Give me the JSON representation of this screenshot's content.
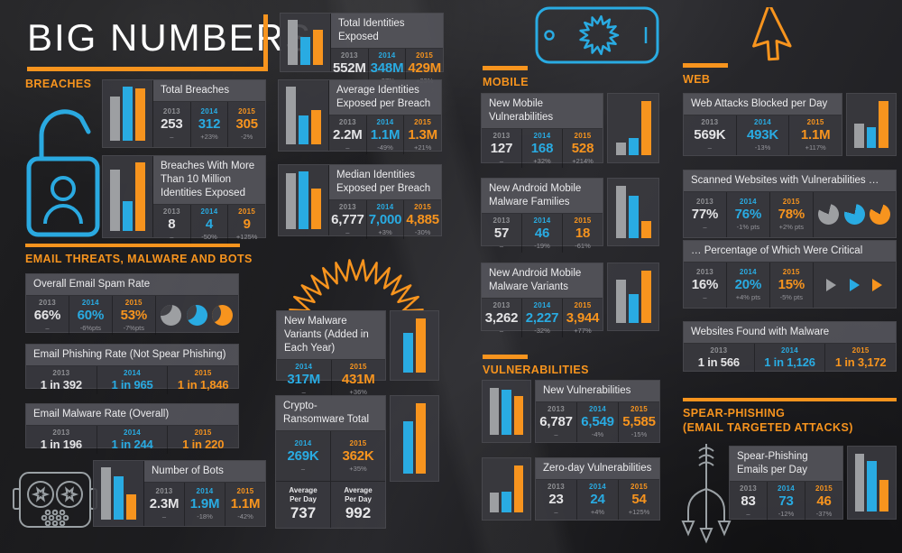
{
  "title": "BIG NUMBERS",
  "colors": {
    "orange": "#F7941E",
    "blue": "#29ABE2",
    "gray": "#9D9FA2"
  },
  "sections": {
    "breaches": {
      "label": "BREACHES"
    },
    "email": {
      "label": "EMAIL THREATS, MALWARE AND BOTS"
    },
    "mobile": {
      "label": "MOBILE"
    },
    "vulnerabilities": {
      "label": "VULNERABILITIES"
    },
    "web": {
      "label": "WEB"
    },
    "spear": {
      "label_line1": "SPEAR-PHISHING",
      "label_line2": "(EMAIL TARGETED ATTACKS)"
    }
  },
  "cards": {
    "total_identities": {
      "title": "Total Identities Exposed",
      "cols": [
        {
          "year": "2013",
          "value": "552M",
          "change": "–"
        },
        {
          "year": "2014",
          "value": "348M",
          "change": "-37%"
        },
        {
          "year": "2015",
          "value": "429M",
          "change": "+23%"
        }
      ],
      "bars": [
        {
          "color": "gray",
          "pct": 100
        },
        {
          "color": "blue",
          "pct": 63
        },
        {
          "color": "orange",
          "pct": 78
        }
      ]
    },
    "total_breaches": {
      "title": "Total Breaches",
      "cols": [
        {
          "year": "2013",
          "value": "253",
          "change": "–"
        },
        {
          "year": "2014",
          "value": "312",
          "change": "+23%"
        },
        {
          "year": "2015",
          "value": "305",
          "change": "-2%"
        }
      ],
      "bars": [
        {
          "color": "gray",
          "pct": 81
        },
        {
          "color": "blue",
          "pct": 100
        },
        {
          "color": "orange",
          "pct": 97
        }
      ]
    },
    "breaches_10m": {
      "title": "Breaches With More Than 10 Million Identities Exposed",
      "cols": [
        {
          "year": "2013",
          "value": "8",
          "change": "–"
        },
        {
          "year": "2014",
          "value": "4",
          "change": "-50%"
        },
        {
          "year": "2015",
          "value": "9",
          "change": "+125%"
        }
      ],
      "bars": [
        {
          "color": "gray",
          "pct": 89
        },
        {
          "color": "blue",
          "pct": 44
        },
        {
          "color": "orange",
          "pct": 100
        }
      ]
    },
    "avg_identities": {
      "title": "Average Identities Exposed per Breach",
      "cols": [
        {
          "year": "2013",
          "value": "2.2M",
          "change": "–"
        },
        {
          "year": "2014",
          "value": "1.1M",
          "change": "-49%"
        },
        {
          "year": "2015",
          "value": "1.3M",
          "change": "+21%"
        }
      ],
      "bars": [
        {
          "color": "gray",
          "pct": 100
        },
        {
          "color": "blue",
          "pct": 50
        },
        {
          "color": "orange",
          "pct": 59
        }
      ]
    },
    "median_identities": {
      "title": "Median Identities Exposed per Breach",
      "cols": [
        {
          "year": "2013",
          "value": "6,777",
          "change": "–"
        },
        {
          "year": "2014",
          "value": "7,000",
          "change": "+3%"
        },
        {
          "year": "2015",
          "value": "4,885",
          "change": "-30%"
        }
      ],
      "bars": [
        {
          "color": "gray",
          "pct": 97
        },
        {
          "color": "blue",
          "pct": 100
        },
        {
          "color": "orange",
          "pct": 70
        }
      ]
    },
    "spam_rate": {
      "title": "Overall Email Spam Rate",
      "cols": [
        {
          "year": "2013",
          "value": "66%",
          "change": "–"
        },
        {
          "year": "2014",
          "value": "60%",
          "change": "-6%pts"
        },
        {
          "year": "2015",
          "value": "53%",
          "change": "-7%pts"
        }
      ]
    },
    "phishing_rate": {
      "title": "Email Phishing Rate (Not Spear Phishing)",
      "cols": [
        {
          "year": "2013",
          "value": "1 in 392"
        },
        {
          "year": "2014",
          "value": "1 in 965"
        },
        {
          "year": "2015",
          "value": "1 in 1,846"
        }
      ]
    },
    "malware_rate": {
      "title": "Email Malware Rate (Overall)",
      "cols": [
        {
          "year": "2013",
          "value": "1 in 196"
        },
        {
          "year": "2014",
          "value": "1 in 244"
        },
        {
          "year": "2015",
          "value": "1 in 220"
        }
      ]
    },
    "bots": {
      "title": "Number of Bots",
      "cols": [
        {
          "year": "2013",
          "value": "2.3M",
          "change": "–"
        },
        {
          "year": "2014",
          "value": "1.9M",
          "change": "-18%"
        },
        {
          "year": "2015",
          "value": "1.1M",
          "change": "-42%"
        }
      ],
      "bars": [
        {
          "color": "gray",
          "pct": 100
        },
        {
          "color": "blue",
          "pct": 83
        },
        {
          "color": "orange",
          "pct": 48
        }
      ]
    },
    "new_malware": {
      "title": "New Malware Variants (Added in Each Year)",
      "cols": [
        {
          "year": "2014",
          "value": "317M",
          "change": "–"
        },
        {
          "year": "2015",
          "value": "431M",
          "change": "+36%"
        }
      ],
      "bars": [
        {
          "color": "blue",
          "pct": 74
        },
        {
          "color": "orange",
          "pct": 100
        }
      ]
    },
    "crypto": {
      "title": "Crypto-Ransomware Total",
      "cols": [
        {
          "year": "2014",
          "value": "269K",
          "change": "–"
        },
        {
          "year": "2015",
          "value": "362K",
          "change": "+35%"
        }
      ],
      "bars": [
        {
          "color": "blue",
          "pct": 74
        },
        {
          "color": "orange",
          "pct": 100
        }
      ],
      "avg": [
        {
          "label": "Average\nPer Day",
          "value": "737"
        },
        {
          "label": "Average\nPer Day",
          "value": "992"
        }
      ]
    },
    "mobile_vulns": {
      "title": "New Mobile Vulnerabilities",
      "cols": [
        {
          "year": "2013",
          "value": "127",
          "change": "–"
        },
        {
          "year": "2014",
          "value": "168",
          "change": "+32%"
        },
        {
          "year": "2015",
          "value": "528",
          "change": "+214%"
        }
      ],
      "bars": [
        {
          "color": "gray",
          "pct": 24
        },
        {
          "color": "blue",
          "pct": 32
        },
        {
          "color": "orange",
          "pct": 100
        }
      ]
    },
    "android_families": {
      "title": "New Android Mobile Malware Families",
      "cols": [
        {
          "year": "2013",
          "value": "57",
          "change": "–"
        },
        {
          "year": "2014",
          "value": "46",
          "change": "-19%"
        },
        {
          "year": "2015",
          "value": "18",
          "change": "-61%"
        }
      ],
      "bars": [
        {
          "color": "gray",
          "pct": 100
        },
        {
          "color": "blue",
          "pct": 81
        },
        {
          "color": "orange",
          "pct": 32
        }
      ]
    },
    "android_variants": {
      "title": "New Android Mobile Malware Variants",
      "cols": [
        {
          "year": "2013",
          "value": "3,262",
          "change": "–"
        },
        {
          "year": "2014",
          "value": "2,227",
          "change": "-32%"
        },
        {
          "year": "2015",
          "value": "3,944",
          "change": "+77%"
        }
      ],
      "bars": [
        {
          "color": "gray",
          "pct": 83
        },
        {
          "color": "blue",
          "pct": 56
        },
        {
          "color": "orange",
          "pct": 100
        }
      ]
    },
    "new_vulns": {
      "title": "New Vulnerabilities",
      "cols": [
        {
          "year": "2013",
          "value": "6,787",
          "change": "–"
        },
        {
          "year": "2014",
          "value": "6,549",
          "change": "-4%"
        },
        {
          "year": "2015",
          "value": "5,585",
          "change": "-15%"
        }
      ],
      "bars": [
        {
          "color": "gray",
          "pct": 100
        },
        {
          "color": "blue",
          "pct": 96
        },
        {
          "color": "orange",
          "pct": 82
        }
      ]
    },
    "zero_day": {
      "title": "Zero-day Vulnerabilities",
      "cols": [
        {
          "year": "2013",
          "value": "23",
          "change": "–"
        },
        {
          "year": "2014",
          "value": "24",
          "change": "+4%"
        },
        {
          "year": "2015",
          "value": "54",
          "change": "+125%"
        }
      ],
      "bars": [
        {
          "color": "gray",
          "pct": 43
        },
        {
          "color": "blue",
          "pct": 44
        },
        {
          "color": "orange",
          "pct": 100
        }
      ]
    },
    "web_attacks": {
      "title": "Web Attacks Blocked per Day",
      "cols": [
        {
          "year": "2013",
          "value": "569K",
          "change": "–"
        },
        {
          "year": "2014",
          "value": "493K",
          "change": "-13%"
        },
        {
          "year": "2015",
          "value": "1.1M",
          "change": "+117%"
        }
      ],
      "bars": [
        {
          "color": "gray",
          "pct": 52
        },
        {
          "color": "blue",
          "pct": 45
        },
        {
          "color": "orange",
          "pct": 100
        }
      ]
    },
    "scanned_sites": {
      "title": "Scanned Websites with Vulnerabilities …",
      "cols": [
        {
          "year": "2013",
          "value": "77%",
          "change": "–"
        },
        {
          "year": "2014",
          "value": "76%",
          "change": "-1% pts"
        },
        {
          "year": "2015",
          "value": "78%",
          "change": "+2% pts"
        }
      ]
    },
    "critical_pct": {
      "title": "… Percentage of Which Were Critical",
      "cols": [
        {
          "year": "2013",
          "value": "16%",
          "change": "–"
        },
        {
          "year": "2014",
          "value": "20%",
          "change": "+4% pts"
        },
        {
          "year": "2015",
          "value": "15%",
          "change": "-5% pts"
        }
      ]
    },
    "websites_malware": {
      "title": "Websites Found with Malware",
      "cols": [
        {
          "year": "2013",
          "value": "1 in 566"
        },
        {
          "year": "2014",
          "value": "1 in 1,126"
        },
        {
          "year": "2015",
          "value": "1 in 3,172"
        }
      ]
    },
    "spear_emails": {
      "title": "Spear-Phishing Emails per Day",
      "cols": [
        {
          "year": "2013",
          "value": "83",
          "change": "–"
        },
        {
          "year": "2014",
          "value": "73",
          "change": "-12%"
        },
        {
          "year": "2015",
          "value": "46",
          "change": "-37%"
        }
      ],
      "bars": [
        {
          "color": "gray",
          "pct": 100
        },
        {
          "color": "blue",
          "pct": 88
        },
        {
          "color": "orange",
          "pct": 55
        }
      ]
    }
  },
  "chart_data": [
    {
      "type": "bar",
      "title": "Total Identities Exposed",
      "categories": [
        "2013",
        "2014",
        "2015"
      ],
      "values": [
        552,
        348,
        429
      ],
      "unit": "millions",
      "changes": [
        "–",
        "-37%",
        "+23%"
      ]
    },
    {
      "type": "bar",
      "title": "Total Breaches",
      "categories": [
        "2013",
        "2014",
        "2015"
      ],
      "values": [
        253,
        312,
        305
      ],
      "changes": [
        "–",
        "+23%",
        "-2%"
      ]
    },
    {
      "type": "bar",
      "title": "Breaches With More Than 10 Million Identities Exposed",
      "categories": [
        "2013",
        "2014",
        "2015"
      ],
      "values": [
        8,
        4,
        9
      ],
      "changes": [
        "–",
        "-50%",
        "+125%"
      ]
    },
    {
      "type": "bar",
      "title": "Average Identities Exposed per Breach",
      "categories": [
        "2013",
        "2014",
        "2015"
      ],
      "values": [
        2.2,
        1.1,
        1.3
      ],
      "unit": "millions",
      "changes": [
        "–",
        "-49%",
        "+21%"
      ]
    },
    {
      "type": "bar",
      "title": "Median Identities Exposed per Breach",
      "categories": [
        "2013",
        "2014",
        "2015"
      ],
      "values": [
        6777,
        7000,
        4885
      ],
      "changes": [
        "–",
        "+3%",
        "-30%"
      ]
    },
    {
      "type": "table",
      "title": "Overall Email Spam Rate",
      "categories": [
        "2013",
        "2014",
        "2015"
      ],
      "values": [
        66,
        60,
        53
      ],
      "unit": "%",
      "changes": [
        "–",
        "-6%pts",
        "-7%pts"
      ]
    },
    {
      "type": "table",
      "title": "Email Phishing Rate (Not Spear Phishing)",
      "categories": [
        "2013",
        "2014",
        "2015"
      ],
      "values": [
        "1 in 392",
        "1 in 965",
        "1 in 1,846"
      ]
    },
    {
      "type": "table",
      "title": "Email Malware Rate (Overall)",
      "categories": [
        "2013",
        "2014",
        "2015"
      ],
      "values": [
        "1 in 196",
        "1 in 244",
        "1 in 220"
      ]
    },
    {
      "type": "bar",
      "title": "Number of Bots",
      "categories": [
        "2013",
        "2014",
        "2015"
      ],
      "values": [
        2.3,
        1.9,
        1.1
      ],
      "unit": "millions",
      "changes": [
        "–",
        "-18%",
        "-42%"
      ]
    },
    {
      "type": "bar",
      "title": "New Malware Variants (Added in Each Year)",
      "categories": [
        "2014",
        "2015"
      ],
      "values": [
        317,
        431
      ],
      "unit": "millions",
      "changes": [
        "–",
        "+36%"
      ]
    },
    {
      "type": "bar",
      "title": "Crypto-Ransomware Total",
      "categories": [
        "2014",
        "2015"
      ],
      "values": [
        269,
        362
      ],
      "unit": "thousands",
      "changes": [
        "–",
        "+35%"
      ],
      "average_per_day": [
        737,
        992
      ]
    },
    {
      "type": "bar",
      "title": "New Mobile Vulnerabilities",
      "categories": [
        "2013",
        "2014",
        "2015"
      ],
      "values": [
        127,
        168,
        528
      ],
      "changes": [
        "–",
        "+32%",
        "+214%"
      ]
    },
    {
      "type": "bar",
      "title": "New Android Mobile Malware Families",
      "categories": [
        "2013",
        "2014",
        "2015"
      ],
      "values": [
        57,
        46,
        18
      ],
      "changes": [
        "–",
        "-19%",
        "-61%"
      ]
    },
    {
      "type": "bar",
      "title": "New Android Mobile Malware Variants",
      "categories": [
        "2013",
        "2014",
        "2015"
      ],
      "values": [
        3262,
        2227,
        3944
      ],
      "changes": [
        "–",
        "-32%",
        "+77%"
      ]
    },
    {
      "type": "bar",
      "title": "New Vulnerabilities",
      "categories": [
        "2013",
        "2014",
        "2015"
      ],
      "values": [
        6787,
        6549,
        5585
      ],
      "changes": [
        "–",
        "-4%",
        "-15%"
      ]
    },
    {
      "type": "bar",
      "title": "Zero-day Vulnerabilities",
      "categories": [
        "2013",
        "2014",
        "2015"
      ],
      "values": [
        23,
        24,
        54
      ],
      "changes": [
        "–",
        "+4%",
        "+125%"
      ]
    },
    {
      "type": "bar",
      "title": "Web Attacks Blocked per Day",
      "categories": [
        "2013",
        "2014",
        "2015"
      ],
      "values": [
        "569K",
        "493K",
        "1.1M"
      ],
      "changes": [
        "–",
        "-13%",
        "+117%"
      ]
    },
    {
      "type": "table",
      "title": "Scanned Websites with Vulnerabilities …",
      "categories": [
        "2013",
        "2014",
        "2015"
      ],
      "values": [
        77,
        76,
        78
      ],
      "unit": "%",
      "changes": [
        "–",
        "-1% pts",
        "+2% pts"
      ]
    },
    {
      "type": "table",
      "title": "… Percentage of Which Were Critical",
      "categories": [
        "2013",
        "2014",
        "2015"
      ],
      "values": [
        16,
        20,
        15
      ],
      "unit": "%",
      "changes": [
        "–",
        "+4% pts",
        "-5% pts"
      ]
    },
    {
      "type": "table",
      "title": "Websites Found with Malware",
      "categories": [
        "2013",
        "2014",
        "2015"
      ],
      "values": [
        "1 in 566",
        "1 in 1,126",
        "1 in 3,172"
      ]
    },
    {
      "type": "bar",
      "title": "Spear-Phishing Emails per Day",
      "categories": [
        "2013",
        "2014",
        "2015"
      ],
      "values": [
        83,
        73,
        46
      ],
      "changes": [
        "–",
        "-12%",
        "-37%"
      ]
    }
  ]
}
